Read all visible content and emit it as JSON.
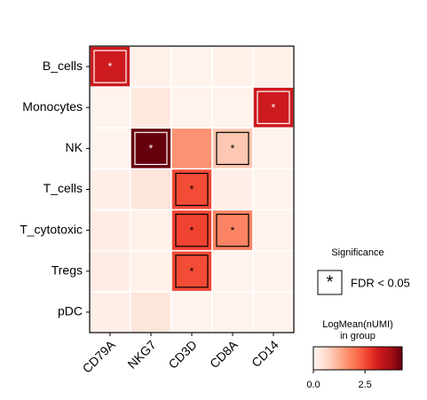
{
  "chart_data": {
    "type": "heatmap",
    "rows": [
      "B_cells",
      "Monocytes",
      "NK",
      "T_cells",
      "T_cytotoxic",
      "Tregs",
      "pDC"
    ],
    "columns": [
      "CD79A",
      "NKG7",
      "CD3D",
      "CD8A",
      "CD14"
    ],
    "values": [
      [
        3.2,
        0.1,
        0.05,
        0.1,
        0.1
      ],
      [
        0.05,
        0.3,
        0.05,
        0.05,
        3.2
      ],
      [
        0.05,
        4.3,
        1.6,
        0.9,
        0.05
      ],
      [
        0.15,
        0.4,
        2.5,
        0.15,
        0.05
      ],
      [
        0.2,
        0.1,
        2.6,
        1.8,
        0.05
      ],
      [
        0.2,
        0.1,
        2.5,
        0.05,
        0.05
      ],
      [
        0.15,
        0.4,
        0.05,
        0.05,
        0.05
      ]
    ],
    "significant": [
      [
        true,
        false,
        false,
        false,
        false
      ],
      [
        false,
        false,
        false,
        false,
        true
      ],
      [
        false,
        true,
        false,
        true,
        false
      ],
      [
        false,
        false,
        true,
        false,
        false
      ],
      [
        false,
        false,
        true,
        true,
        false
      ],
      [
        false,
        false,
        true,
        false,
        false
      ],
      [
        false,
        false,
        false,
        false,
        false
      ]
    ],
    "significance_marker": "*",
    "significance_title": "Significance",
    "significance_label": "FDR < 0.05",
    "colormap": "Reds",
    "colorbar_title": [
      "LogMean(nUMI)",
      "in group"
    ],
    "clim": [
      0,
      4.3
    ],
    "cticks": [
      {
        "value": 0,
        "label": "0.0"
      },
      2.5
    ]
  }
}
